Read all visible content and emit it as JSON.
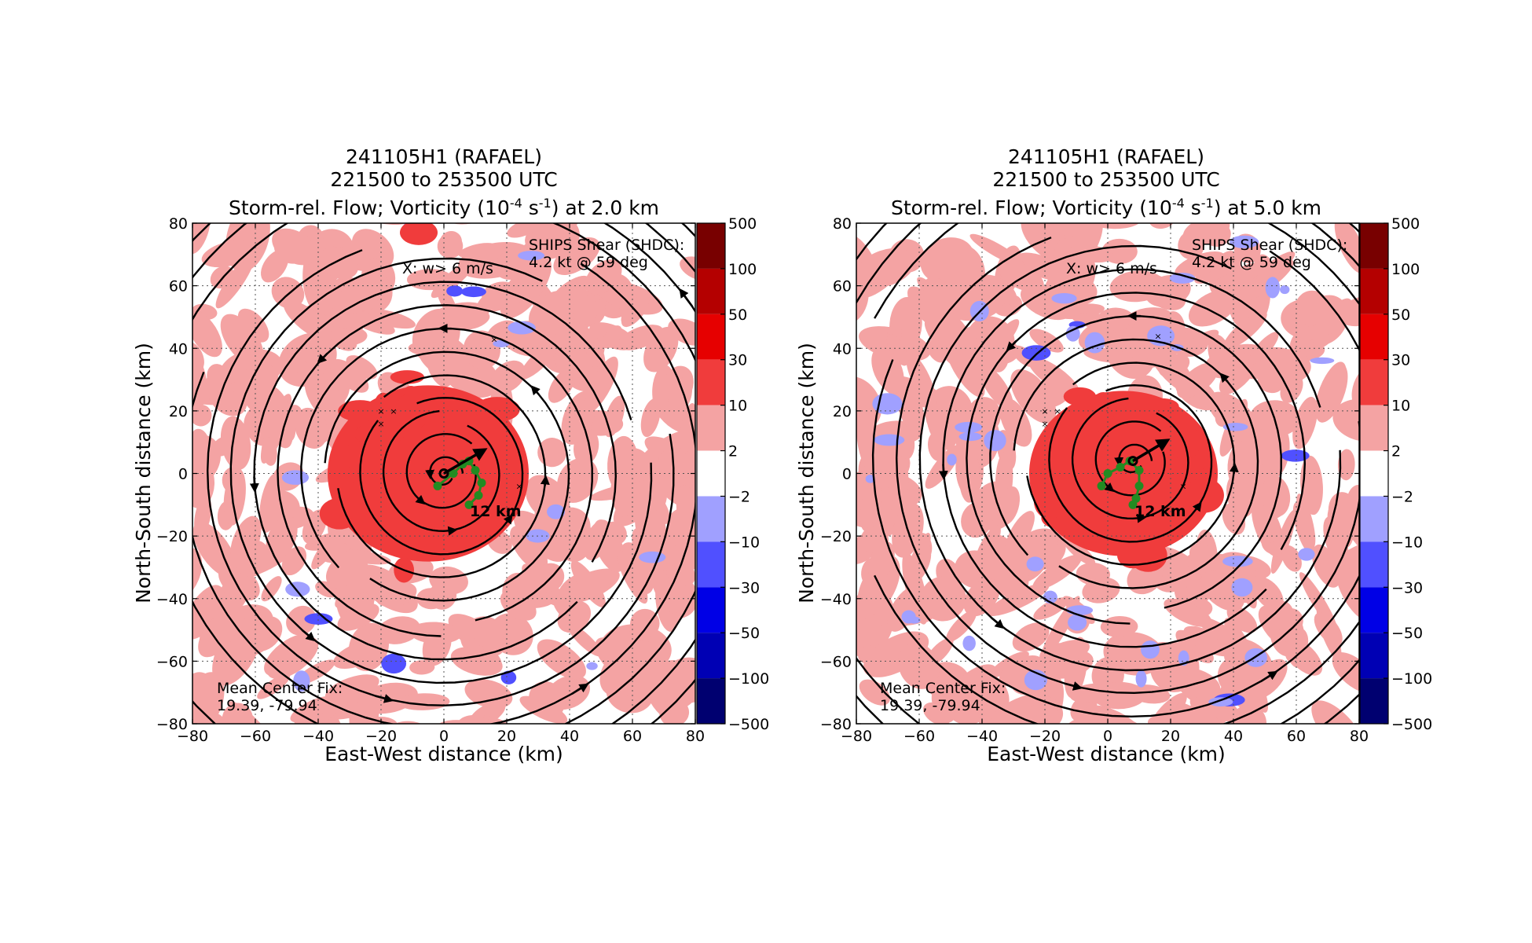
{
  "colors": {
    "vort_pos": [
      "#ffffff",
      "#f4a3a3",
      "#f03c3c",
      "#e60000",
      "#b40000",
      "#780000"
    ],
    "vort_neg": [
      "#ffffff",
      "#a0a0ff",
      "#5050ff",
      "#0000e6",
      "#0000b4",
      "#000070"
    ],
    "streamline": "#000000",
    "track": "#228b22"
  },
  "panels": [
    {
      "title_line1": "241105H1 (RAFAEL)",
      "title_line2": "221500 to 253500 UTC",
      "title_line3_pre": "Storm-rel. Flow; Vorticity (10",
      "title_exp1": "-4",
      "title_mid": " s",
      "title_exp2": "-1",
      "title_line3_post": ") at 2.0 km",
      "xlabel": "East-West distance (km)",
      "ylabel": "North-South distance (km)",
      "shear_line1": "SHIPS Shear (SHDC):",
      "shear_line2": "4.2 kt @ 59 deg",
      "w_label": "X: w> 6 m/s",
      "height_label": "12 km",
      "fix_line1": "Mean Center Fix:",
      "fix_line2": "19.39, -79.94"
    },
    {
      "title_line1": "241105H1 (RAFAEL)",
      "title_line2": "221500 to 253500 UTC",
      "title_line3_pre": "Storm-rel. Flow; Vorticity (10",
      "title_exp1": "-4",
      "title_mid": " s",
      "title_exp2": "-1",
      "title_line3_post": ") at 5.0 km",
      "xlabel": "East-West distance (km)",
      "ylabel": "North-South distance (km)",
      "shear_line1": "SHIPS Shear (SHDC):",
      "shear_line2": "4.2 kt @ 59 deg",
      "w_label": "X: w> 6 m/s",
      "height_label": "12 km",
      "fix_line1": "Mean Center Fix:",
      "fix_line2": "19.39, -79.94"
    }
  ],
  "chart_data": [
    {
      "type": "heatmap",
      "level_km": 2.0,
      "xlim": [
        -80,
        80
      ],
      "ylim": [
        -80,
        80
      ],
      "xticks": [
        "−80",
        "−60",
        "−40",
        "−20",
        "0",
        "20",
        "40",
        "60",
        "80"
      ],
      "yticks": [
        "80",
        "60",
        "40",
        "20",
        "0",
        "−20",
        "−40",
        "−60",
        "−80"
      ],
      "grid": true,
      "colorbar_ticks": [
        "500",
        "100",
        "50",
        "30",
        "10",
        "2",
        "−2",
        "−10",
        "−30",
        "−50",
        "−100",
        "−500"
      ],
      "core_vorticity_center": [
        -5,
        0
      ],
      "core_radius_km": 32,
      "center_fix_km": [
        0,
        0
      ],
      "shear_vector_end_km": [
        12,
        7
      ],
      "track_points_km": [
        [
          -2,
          -4
        ],
        [
          3,
          0
        ],
        [
          6,
          3
        ],
        [
          8,
          4
        ],
        [
          10,
          1
        ],
        [
          12,
          -3
        ],
        [
          11,
          -7
        ],
        [
          8,
          -10
        ]
      ],
      "updraft_marks_km": [
        [
          -20,
          20
        ],
        [
          -16,
          20
        ],
        [
          -20,
          16
        ],
        [
          16,
          43
        ],
        [
          24,
          -4
        ]
      ]
    },
    {
      "type": "heatmap",
      "level_km": 5.0,
      "xlim": [
        -80,
        80
      ],
      "ylim": [
        -80,
        80
      ],
      "xticks": [
        "−80",
        "−60",
        "−40",
        "−20",
        "0",
        "20",
        "40",
        "60",
        "80"
      ],
      "yticks": [
        "80",
        "60",
        "40",
        "20",
        "0",
        "−20",
        "−40",
        "−60",
        "−80"
      ],
      "grid": true,
      "colorbar_ticks": [
        "500",
        "100",
        "50",
        "30",
        "10",
        "2",
        "−2",
        "−10",
        "−30",
        "−50",
        "−100",
        "−500"
      ],
      "core_vorticity_center": [
        5,
        0
      ],
      "core_radius_km": 30,
      "center_fix_km": [
        8,
        4
      ],
      "shear_vector_end_km": [
        18,
        10
      ],
      "track_points_km": [
        [
          -2,
          -4
        ],
        [
          0,
          0
        ],
        [
          4,
          2
        ],
        [
          7,
          4
        ],
        [
          10,
          1
        ],
        [
          10,
          -4
        ],
        [
          9,
          -8
        ],
        [
          8,
          -10
        ]
      ],
      "updraft_marks_km": [
        [
          -20,
          20
        ],
        [
          -16,
          20
        ],
        [
          -20,
          16
        ],
        [
          16,
          44
        ],
        [
          24,
          -4
        ]
      ]
    }
  ]
}
